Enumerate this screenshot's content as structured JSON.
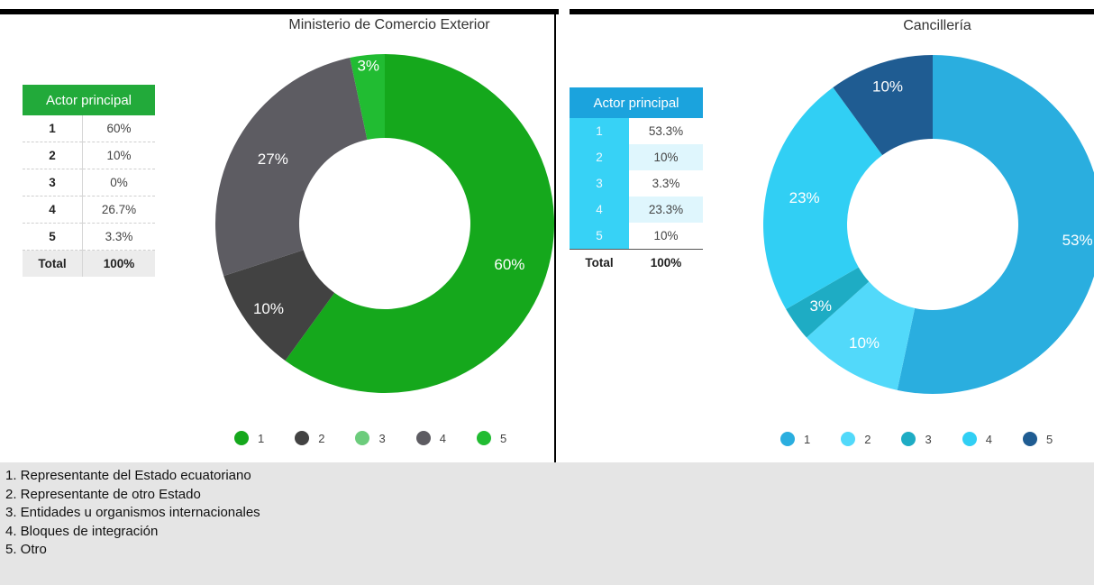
{
  "left_panel": {
    "title": "Ministerio de Comercio Exterior",
    "table_header": "Actor principal",
    "rows": [
      {
        "key": "1",
        "value": "60%"
      },
      {
        "key": "2",
        "value": "10%"
      },
      {
        "key": "3",
        "value": "0%"
      },
      {
        "key": "4",
        "value": "26.7%"
      },
      {
        "key": "5",
        "value": "3.3%"
      }
    ],
    "total": {
      "label": "Total",
      "value": "100%"
    }
  },
  "right_panel": {
    "title": "Cancillería",
    "table_header": "Actor principal",
    "rows": [
      {
        "key": "1",
        "value": "53.3%"
      },
      {
        "key": "2",
        "value": "10%"
      },
      {
        "key": "3",
        "value": "3.3%"
      },
      {
        "key": "4",
        "value": "23.3%"
      },
      {
        "key": "5",
        "value": "10%"
      }
    ],
    "total": {
      "label": "Total",
      "value": "100%"
    }
  },
  "chart_data": [
    {
      "type": "pie",
      "title": "Ministerio de Comercio Exterior",
      "categories": [
        "1",
        "2",
        "3",
        "4",
        "5"
      ],
      "values": [
        60,
        10,
        0,
        26.7,
        3.3
      ],
      "data_labels": [
        "60%",
        "10%",
        "",
        "27%",
        "3%"
      ],
      "colors": [
        "#15a81c",
        "#424242",
        "#6ccc7c",
        "#5d5c62",
        "#21bc32"
      ],
      "legend_position": "bottom"
    },
    {
      "type": "pie",
      "title": "Cancillería",
      "categories": [
        "1",
        "2",
        "3",
        "4",
        "5"
      ],
      "values": [
        53.3,
        10,
        3.3,
        23.3,
        10
      ],
      "data_labels": [
        "53%",
        "10%",
        "3%",
        "23%",
        "10%"
      ],
      "colors": [
        "#2aaedf",
        "#52d9fa",
        "#1eacc4",
        "#31cff4",
        "#1f5c92"
      ],
      "legend_position": "bottom"
    }
  ],
  "notes": [
    "1. Representante del Estado ecuatoriano",
    "2. Representante de otro Estado",
    "3. Entidades u organismos internacionales",
    "4. Bloques de integración",
    "5. Otro"
  ]
}
